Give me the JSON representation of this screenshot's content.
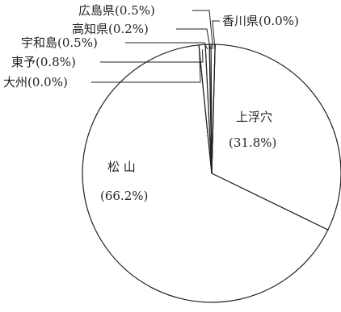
{
  "chart_data": {
    "type": "pie",
    "title": "",
    "slices": [
      {
        "label": "上浮穴",
        "value": 31.8,
        "display": "(31.8%)"
      },
      {
        "label": "松 山",
        "value": 66.2,
        "display": "(66.2%)"
      },
      {
        "label": "大州",
        "value": 0.0,
        "display": "大州(0.0%)"
      },
      {
        "label": "東予",
        "value": 0.8,
        "display": "東予(0.8%)"
      },
      {
        "label": "宇和島",
        "value": 0.5,
        "display": "宇和島(0.5%)"
      },
      {
        "label": "高知県",
        "value": 0.2,
        "display": "高知県(0.2%)"
      },
      {
        "label": "広島県",
        "value": 0.5,
        "display": "広島県(0.5%)"
      },
      {
        "label": "香川県",
        "value": 0.0,
        "display": "香川県(0.0%)"
      }
    ],
    "colors": {
      "fill": "#ffffff",
      "stroke": "#222222"
    }
  }
}
